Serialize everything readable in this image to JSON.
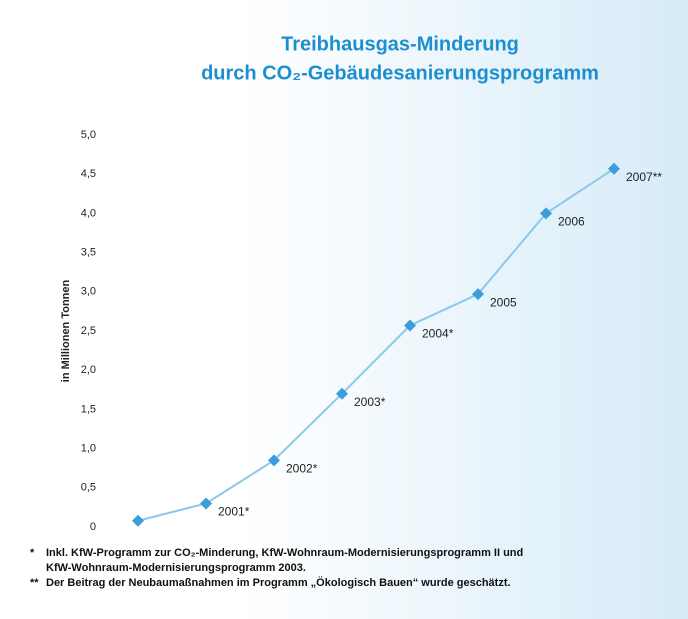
{
  "chart_data": {
    "type": "line",
    "title": [
      "Treibhausgas-Minderung",
      "durch CO₂-Gebäudesanierungsprogramm"
    ],
    "y_label": "in Millionen Tonnen",
    "categories": [
      null,
      "2001*",
      "2002*",
      "2003*",
      "2004*",
      "2005",
      "2006",
      "2007**"
    ],
    "series": [
      {
        "color": "#3a9fd8",
        "values": [
          0.08,
          0.3,
          0.85,
          1.7,
          2.57,
          2.97,
          4.0,
          4.57
        ]
      }
    ],
    "ylim": [
      0,
      5
    ],
    "yticks": [
      0,
      {
        "value": 0.5,
        "label": "0,5"
      },
      {
        "value": 1,
        "label": "1,0"
      },
      {
        "value": 1.5,
        "label": "1,5"
      },
      {
        "value": 2,
        "label": "2,0"
      },
      {
        "value": 2.5,
        "label": "2,5"
      },
      {
        "value": 3,
        "label": "3,0"
      },
      {
        "value": 3.5,
        "label": "3,5"
      },
      {
        "value": 4,
        "label": "4,0"
      },
      {
        "value": 4.5,
        "label": "4,5"
      },
      {
        "value": 5,
        "label": "5,0"
      }
    ],
    "grid": false,
    "footnotes": [
      {
        "marker": "*",
        "lines": [
          "Inkl. KfW-Programm zur CO₂-Minderung, KfW-Wohnraum-Modernisierungsprogramm II und",
          "KfW-Wohnraum-Modernisierungsprogramm 2003."
        ]
      },
      {
        "marker": "**",
        "lines": [
          "Der Beitrag der Neubaumaßnahmen im Programm „Ökologisch Bauen“ wurde geschätzt."
        ]
      }
    ]
  }
}
